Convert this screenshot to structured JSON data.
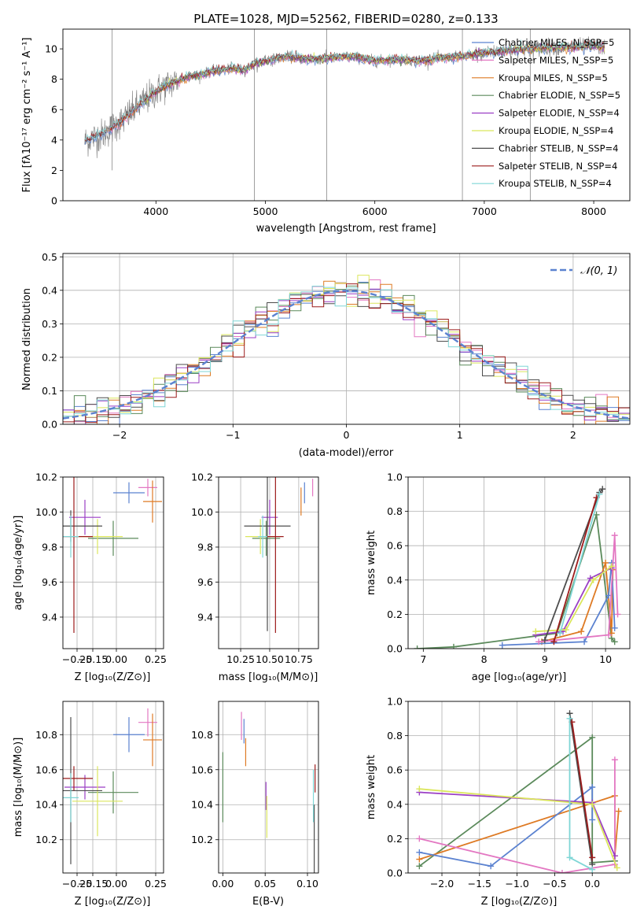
{
  "colors": {
    "chabrier_miles": "#5b82d0",
    "salpeter_miles": "#e377c2",
    "kroupa_miles": "#de7a24",
    "chabrier_elodie": "#5b8a5b",
    "salpeter_elodie": "#9b3fc5",
    "kroupa_elodie": "#dbe65c",
    "chabrier_stelib": "#4d4d4d",
    "salpeter_stelib": "#9c1c1c",
    "kroupa_stelib": "#7fd6d6",
    "normal_curve": "#5b82d0"
  },
  "chart_data": [
    {
      "type": "line",
      "title": "PLATE=1028, MJD=52562, FIBERID=0280, z=0.133",
      "xlabel": "wavelength [Angstrom, rest frame]",
      "ylabel": "Flux [fλ10⁻¹⁷ erg cm⁻² s⁻¹ A⁻¹]",
      "xlim": [
        3150,
        8330
      ],
      "ylim": [
        0,
        11.3
      ],
      "xticks": [
        "4000",
        "5000",
        "6000",
        "7000",
        "8000"
      ],
      "yticks": [
        "0",
        "2",
        "4",
        "6",
        "8",
        "10"
      ],
      "legend_position": "right",
      "legend": [
        "Chabrier MILES, N_SSP=5",
        "Salpeter MILES, N_SSP=5",
        "Kroupa MILES, N_SSP=5",
        "Chabrier ELODIE, N_SSP=5",
        "Salpeter ELODIE, N_SSP=4",
        "Kroupa ELODIE, N_SSP=4",
        "Chabrier STELIB, N_SSP=4",
        "Salpeter STELIB, N_SSP=4",
        "Kroupa STELIB, N_SSP=4"
      ],
      "continuum_x": [
        3350,
        3400,
        3500,
        3600,
        3700,
        3800,
        3900,
        4000,
        4100,
        4200,
        4300,
        4400,
        4500,
        4600,
        4700,
        4800,
        4900,
        5000,
        5200,
        5400,
        5600,
        5800,
        6000,
        6200,
        6400,
        6600,
        6800,
        7000,
        7200,
        7400,
        7600,
        7800,
        8000,
        8100
      ],
      "continuum_y": [
        3.9,
        4.1,
        4.3,
        4.8,
        5.3,
        6.0,
        6.6,
        7.2,
        7.6,
        7.9,
        8.2,
        8.3,
        8.5,
        8.6,
        8.7,
        8.6,
        9.0,
        9.2,
        9.5,
        9.3,
        9.4,
        9.5,
        9.2,
        9.3,
        9.2,
        9.4,
        9.5,
        9.7,
        9.9,
        10.0,
        10.1,
        10.1,
        10.2,
        10.1
      ],
      "grid": false
    },
    {
      "type": "line",
      "xlabel": "(data-model)/error",
      "ylabel": "Normed distribution",
      "xlim": [
        -2.5,
        2.5
      ],
      "ylim": [
        0,
        0.51
      ],
      "xticks": [
        "−2",
        "−1",
        "0",
        "1",
        "2"
      ],
      "yticks": [
        "0.0",
        "0.1",
        "0.2",
        "0.3",
        "0.4",
        "0.5"
      ],
      "legend_position": "top-right",
      "legend": [
        "𝒩(0, 1)"
      ],
      "grid": true
    },
    {
      "type": "scatter",
      "xlabel": "Z [log₁₀(Z/Z⊙)]",
      "ylabel": "age  [log₁₀(age/yr)]",
      "xlim": [
        -0.34,
        0.3
      ],
      "ylim": [
        9.22,
        10.2
      ],
      "xticks": [
        "−0.25",
        "−0.15",
        "0.00",
        "0.25"
      ],
      "yticks": [
        "9.4",
        "9.6",
        "9.8",
        "10.0",
        "10.2"
      ],
      "points": [
        {
          "series": "chabrier_miles",
          "x": 0.08,
          "y": 10.11,
          "xerr": 0.1,
          "yerr": 0.06
        },
        {
          "series": "salpeter_miles",
          "x": 0.2,
          "y": 10.14,
          "xerr": 0.06,
          "yerr": 0.05
        },
        {
          "series": "kroupa_miles",
          "x": 0.23,
          "y": 10.06,
          "xerr": 0.06,
          "yerr": 0.12
        },
        {
          "series": "chabrier_elodie",
          "x": -0.02,
          "y": 9.85,
          "xerr": 0.16,
          "yerr": 0.1
        },
        {
          "series": "salpeter_elodie",
          "x": -0.2,
          "y": 9.97,
          "xerr": 0.1,
          "yerr": 0.1
        },
        {
          "series": "kroupa_elodie",
          "x": -0.12,
          "y": 9.86,
          "xerr": 0.16,
          "yerr": 0.1
        },
        {
          "series": "chabrier_stelib",
          "x": -0.29,
          "y": 9.92,
          "xerr": 0.2,
          "yerr": 0.09
        },
        {
          "series": "salpeter_stelib",
          "x": -0.27,
          "y": 9.86,
          "xerr": 0.12,
          "yerr": 0.55
        },
        {
          "series": "kroupa_stelib",
          "x": -0.29,
          "y": 9.86,
          "xerr": 0.05,
          "yerr": 0.12
        }
      ],
      "grid": true
    },
    {
      "type": "scatter",
      "xlabel": "mass [log₁₀(M/M⊙)]",
      "xlim": [
        10.06,
        10.92
      ],
      "ylim": [
        9.22,
        10.2
      ],
      "xticks": [
        "10.25",
        "10.50",
        "10.75"
      ],
      "yticks": [
        "9.4",
        "9.6",
        "9.8",
        "10.0",
        "10.2"
      ],
      "points": [
        {
          "series": "chabrier_miles",
          "x": 10.8,
          "y": 10.11,
          "yerr": 0.06
        },
        {
          "series": "salpeter_miles",
          "x": 10.87,
          "y": 10.14,
          "yerr": 0.05
        },
        {
          "series": "kroupa_miles",
          "x": 10.77,
          "y": 10.06,
          "yerr": 0.08
        },
        {
          "series": "chabrier_elodie",
          "x": 10.47,
          "y": 9.85,
          "xerr": 0.12,
          "yerr": 0.1
        },
        {
          "series": "salpeter_elodie",
          "x": 10.5,
          "y": 9.97,
          "xerr": 0.07,
          "yerr": 0.1
        },
        {
          "series": "kroupa_elodie",
          "x": 10.42,
          "y": 9.86,
          "xerr": 0.13,
          "yerr": 0.1
        },
        {
          "series": "chabrier_stelib",
          "x": 10.48,
          "y": 9.92,
          "xerr": 0.2,
          "yerr": 0.6
        },
        {
          "series": "salpeter_stelib",
          "x": 10.55,
          "y": 9.86,
          "xerr": 0.07,
          "yerr": 0.55
        },
        {
          "series": "kroupa_stelib",
          "x": 10.44,
          "y": 9.86,
          "xerr": 0.04,
          "yerr": 0.12
        }
      ],
      "grid": true
    },
    {
      "type": "line",
      "xlabel": "age  [log₁₀(age/yr)]",
      "ylabel": "mass weight",
      "xlim": [
        6.75,
        10.4
      ],
      "ylim": [
        0,
        1.0
      ],
      "xticks": [
        "7",
        "8",
        "9",
        "10"
      ],
      "yticks": [
        "0.0",
        "0.2",
        "0.4",
        "0.6",
        "0.8",
        "1.0"
      ],
      "series": [
        {
          "key": "chabrier_elodie",
          "x": [
            6.9,
            7.5,
            9.2,
            9.85,
            10.1,
            10.15
          ],
          "y": [
            0.0,
            0.01,
            0.09,
            0.78,
            0.06,
            0.04
          ]
        },
        {
          "key": "kroupa_miles",
          "x": [
            8.95,
            9.6,
            10.0,
            10.1,
            10.12
          ],
          "y": [
            0.04,
            0.1,
            0.5,
            0.09,
            0.46
          ]
        },
        {
          "key": "chabrier_miles",
          "x": [
            8.3,
            9.65,
            10.05,
            10.1,
            10.15
          ],
          "y": [
            0.02,
            0.04,
            0.31,
            0.5,
            0.12
          ]
        },
        {
          "key": "salpeter_miles",
          "x": [
            8.9,
            10.05,
            10.15,
            10.2
          ],
          "y": [
            0.04,
            0.08,
            0.66,
            0.2
          ]
        },
        {
          "key": "salpeter_elodie",
          "x": [
            8.85,
            9.3,
            9.75,
            10.1
          ],
          "y": [
            0.08,
            0.1,
            0.41,
            0.47
          ]
        },
        {
          "key": "kroupa_elodie",
          "x": [
            8.85,
            9.35,
            9.8,
            10.1
          ],
          "y": [
            0.1,
            0.11,
            0.4,
            0.48
          ]
        },
        {
          "key": "chabrier_stelib",
          "x": [
            9.0,
            9.9,
            9.95
          ],
          "y": [
            0.05,
            0.91,
            0.93
          ]
        },
        {
          "key": "salpeter_stelib",
          "x": [
            9.15,
            9.85
          ],
          "y": [
            0.04,
            0.88
          ]
        },
        {
          "key": "kroupa_stelib",
          "x": [
            9.25,
            9.9
          ],
          "y": [
            0.09,
            0.9
          ]
        }
      ],
      "grid": true
    },
    {
      "type": "scatter",
      "xlabel": "Z [log₁₀(Z/Z⊙)]",
      "ylabel": "mass [log₁₀(M/M⊙)]",
      "xlim": [
        -0.34,
        0.3
      ],
      "ylim": [
        10.01,
        10.99
      ],
      "xticks": [
        "−0.25",
        "−0.15",
        "0.00",
        "0.25"
      ],
      "yticks": [
        "10.2",
        "10.4",
        "10.6",
        "10.8"
      ],
      "points": [
        {
          "series": "chabrier_miles",
          "x": 0.08,
          "y": 10.8,
          "xerr": 0.1,
          "yerr": 0.1
        },
        {
          "series": "salpeter_miles",
          "x": 0.2,
          "y": 10.87,
          "xerr": 0.06,
          "yerr": 0.08
        },
        {
          "series": "kroupa_miles",
          "x": 0.23,
          "y": 10.77,
          "xerr": 0.06,
          "yerr": 0.15
        },
        {
          "series": "chabrier_elodie",
          "x": -0.02,
          "y": 10.47,
          "xerr": 0.16,
          "yerr": 0.12
        },
        {
          "series": "salpeter_elodie",
          "x": -0.2,
          "y": 10.5,
          "xerr": 0.13,
          "yerr": 0.07
        },
        {
          "series": "kroupa_elodie",
          "x": -0.12,
          "y": 10.42,
          "xerr": 0.16,
          "yerr": 0.2
        },
        {
          "series": "chabrier_stelib",
          "x": -0.29,
          "y": 10.48,
          "xerr": 0.2,
          "yerr": 0.42
        },
        {
          "series": "salpeter_stelib",
          "x": -0.27,
          "y": 10.55,
          "xerr": 0.12,
          "yerr": 0.07
        },
        {
          "series": "kroupa_stelib",
          "x": -0.29,
          "y": 10.44,
          "xerr": 0.05,
          "yerr": 0.14
        }
      ],
      "grid": true
    },
    {
      "type": "scatter",
      "xlabel": "E(B-V)",
      "xlim": [
        -0.005,
        0.113
      ],
      "ylim": [
        10.01,
        10.99
      ],
      "xticks": [
        "0.00",
        "0.05",
        "0.10"
      ],
      "yticks": [
        "10.2",
        "10.4",
        "10.6",
        "10.8"
      ],
      "points": [
        {
          "series": "chabrier_elodie",
          "x": 0.0,
          "y": 10.5,
          "yerr": 0.2
        },
        {
          "series": "salpeter_miles",
          "x": 0.022,
          "y": 10.85,
          "yerr": 0.08
        },
        {
          "series": "chabrier_miles",
          "x": 0.025,
          "y": 10.82,
          "yerr": 0.07
        },
        {
          "series": "kroupa_miles",
          "x": 0.027,
          "y": 10.7,
          "yerr": 0.08
        },
        {
          "series": "salpeter_elodie",
          "x": 0.051,
          "y": 10.45,
          "yerr": 0.08
        },
        {
          "series": "kroupa_elodie",
          "x": 0.052,
          "y": 10.33,
          "yerr": 0.12
        },
        {
          "series": "chabrier_stelib",
          "x": 0.108,
          "y": 10.2,
          "yerr": 0.2
        },
        {
          "series": "salpeter_stelib",
          "x": 0.109,
          "y": 10.55,
          "yerr": 0.08
        },
        {
          "series": "kroupa_stelib",
          "x": 0.107,
          "y": 10.45,
          "yerr": 0.15
        }
      ],
      "grid": true
    },
    {
      "type": "line",
      "xlabel": "Z [log₁₀(Z/Z⊙)]",
      "ylabel": "mass weight",
      "xlim": [
        -2.45,
        0.5
      ],
      "ylim": [
        0,
        1.0
      ],
      "xticks": [
        "−2.0",
        "−1.5",
        "−1.0",
        "−0.5",
        "0.0"
      ],
      "yticks": [
        "0.0",
        "0.2",
        "0.4",
        "0.6",
        "0.8",
        "1.0"
      ],
      "series": [
        {
          "key": "chabrier_elodie",
          "x": [
            -2.3,
            0.0,
            0.0,
            0.3
          ],
          "y": [
            0.04,
            0.79,
            0.06,
            0.07
          ]
        },
        {
          "key": "kroupa_miles",
          "x": [
            -2.3,
            0.3,
            0.3,
            0.35
          ],
          "y": [
            0.08,
            0.45,
            0.1,
            0.36
          ]
        },
        {
          "key": "chabrier_miles",
          "x": [
            -2.3,
            -1.35,
            0.0,
            0.0
          ],
          "y": [
            0.12,
            0.04,
            0.5,
            0.31
          ]
        },
        {
          "key": "salpeter_miles",
          "x": [
            -2.3,
            -0.4,
            0.3,
            0.3
          ],
          "y": [
            0.2,
            0.0,
            0.05,
            0.66
          ]
        },
        {
          "key": "salpeter_elodie",
          "x": [
            -2.3,
            0.0,
            0.3
          ],
          "y": [
            0.47,
            0.41,
            0.1
          ]
        },
        {
          "key": "kroupa_elodie",
          "x": [
            -2.3,
            0.0,
            0.33
          ],
          "y": [
            0.49,
            0.4,
            0.03
          ]
        },
        {
          "key": "chabrier_stelib",
          "x": [
            -0.3,
            0.0
          ],
          "y": [
            0.93,
            0.05
          ]
        },
        {
          "key": "salpeter_stelib",
          "x": [
            -0.27,
            0.0
          ],
          "y": [
            0.88,
            0.09
          ]
        },
        {
          "key": "kroupa_stelib",
          "x": [
            -0.3,
            -0.3,
            0.0
          ],
          "y": [
            0.9,
            0.09,
            0.02
          ]
        }
      ],
      "grid": true
    }
  ]
}
